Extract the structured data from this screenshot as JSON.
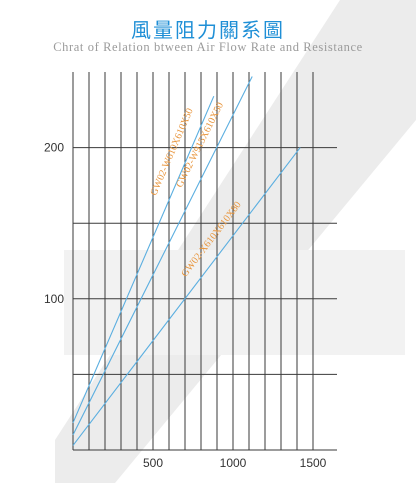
{
  "title": "風量阻力關系圖",
  "subtitle": "Chrat of Relation btween Air Flow Rate and Resistance",
  "colors": {
    "title": "#1f8fd6",
    "subtitle": "#9b9b9b",
    "grid": "#3a3a3a",
    "series_line": "#5aaee0",
    "series_label": "#e8943a",
    "background_shape": "#ececec"
  },
  "chart_data": {
    "type": "line",
    "xlim": [
      0,
      1500
    ],
    "ylim": [
      0,
      250
    ],
    "x_ticks": [
      500,
      1000,
      1500
    ],
    "x_tick_labels": [
      "500",
      "1000",
      "1500"
    ],
    "y_ticks": [
      100,
      200
    ],
    "y_tick_labels": [
      "100",
      "200"
    ],
    "grid": true,
    "series": [
      {
        "name": "GW02-W610X610X50",
        "x": [
          0,
          880
        ],
        "y": [
          18,
          234
        ]
      },
      {
        "name": "GW02-W915X610X50",
        "x": [
          0,
          1120
        ],
        "y": [
          10,
          247
        ]
      },
      {
        "name": "GW02-X610X610X80",
        "x": [
          0,
          1420
        ],
        "y": [
          3,
          200
        ]
      }
    ]
  }
}
